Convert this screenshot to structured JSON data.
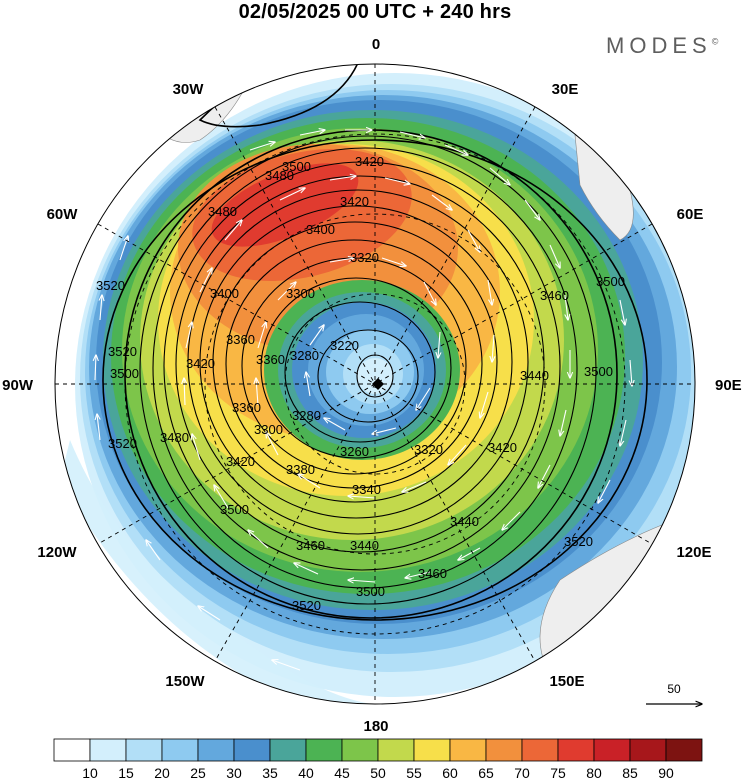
{
  "header": {
    "title": "02/05/2025  00 UTC  + 240 hrs",
    "brand": "MODES",
    "brand_mark": "©"
  },
  "map": {
    "projection": "south polar stereographic",
    "longitude_labels": {
      "top": "0",
      "top_right": "30E",
      "right_upper": "60E",
      "right": "90E",
      "right_lower": "120E",
      "bottom_right": "150E",
      "bottom": "180",
      "bottom_left": "150W",
      "left_lower": "120W",
      "left": "90W",
      "left_upper": "60W",
      "top_left": "30W"
    },
    "contour_labels": [
      "3480",
      "3500",
      "3420",
      "3480",
      "3420",
      "3400",
      "3320",
      "3300",
      "3400",
      "3520",
      "3360",
      "3520",
      "3420",
      "3360",
      "3280",
      "3220",
      "3360",
      "3480",
      "3500",
      "3280",
      "3300",
      "3260",
      "3420",
      "3380",
      "3340",
      "3320",
      "3420",
      "3520",
      "3500",
      "3440",
      "3460",
      "3440",
      "3460",
      "3500",
      "3520",
      "3520",
      "3500",
      "3500",
      "3440",
      "3460"
    ],
    "contour_levels_gpm": [
      3220,
      3260,
      3280,
      3300,
      3320,
      3340,
      3360,
      3380,
      3400,
      3420,
      3440,
      3460,
      3480,
      3500,
      3520
    ],
    "reference_vector_label": "50"
  },
  "colorbar": {
    "ticks": [
      "10",
      "15",
      "20",
      "25",
      "30",
      "35",
      "40",
      "45",
      "50",
      "55",
      "60",
      "65",
      "70",
      "75",
      "80",
      "85",
      "90"
    ],
    "colors": [
      "#ffffff",
      "#d3effc",
      "#b2dff7",
      "#8ecaf0",
      "#63a8dd",
      "#4a8fcd",
      "#4aa59a",
      "#4cb353",
      "#7dc54a",
      "#c2d94c",
      "#f7df4a",
      "#f9b744",
      "#f2903d",
      "#ec6737",
      "#e03b2f",
      "#c92127",
      "#a7171b",
      "#7d1311"
    ]
  }
}
